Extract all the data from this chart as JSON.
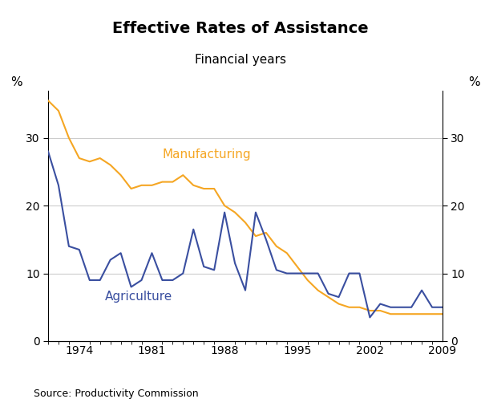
{
  "title": "Effective Rates of Assistance",
  "subtitle": "Financial years",
  "source": "Source: Productivity Commission",
  "ylabel_left": "%",
  "ylabel_right": "%",
  "xlim": [
    1971,
    2009
  ],
  "ylim": [
    0,
    37
  ],
  "yticks": [
    0,
    10,
    20,
    30
  ],
  "xtick_labels": [
    "1974",
    "1981",
    "1988",
    "1995",
    "2002",
    "2009"
  ],
  "xtick_positions": [
    1974,
    1981,
    1988,
    1995,
    2002,
    2009
  ],
  "manufacturing_color": "#F5A623",
  "agriculture_color": "#3A4FA0",
  "manufacturing_label": "Manufacturing",
  "agriculture_label": "Agriculture",
  "manufacturing_x": [
    1971,
    1972,
    1973,
    1974,
    1975,
    1976,
    1977,
    1978,
    1979,
    1980,
    1981,
    1982,
    1983,
    1984,
    1985,
    1986,
    1987,
    1988,
    1989,
    1990,
    1991,
    1992,
    1993,
    1994,
    1995,
    1996,
    1997,
    1998,
    1999,
    2000,
    2001,
    2002,
    2003,
    2004,
    2005,
    2006,
    2007,
    2008,
    2009
  ],
  "manufacturing_y": [
    35.5,
    34.0,
    30.0,
    27.0,
    26.5,
    27.0,
    26.0,
    24.5,
    22.5,
    23.0,
    23.0,
    23.5,
    23.5,
    24.5,
    23.0,
    22.5,
    22.5,
    20.0,
    19.0,
    17.5,
    15.5,
    16.0,
    14.0,
    13.0,
    11.0,
    9.0,
    7.5,
    6.5,
    5.5,
    5.0,
    5.0,
    4.5,
    4.5,
    4.0,
    4.0,
    4.0,
    4.0,
    4.0,
    4.0
  ],
  "agriculture_x": [
    1971,
    1972,
    1973,
    1974,
    1975,
    1976,
    1977,
    1978,
    1979,
    1980,
    1981,
    1982,
    1983,
    1984,
    1985,
    1986,
    1987,
    1988,
    1989,
    1990,
    1991,
    1992,
    1993,
    1994,
    1995,
    1996,
    1997,
    1998,
    1999,
    2000,
    2001,
    2002,
    2003,
    2004,
    2005,
    2006,
    2007,
    2008,
    2009
  ],
  "agriculture_y": [
    28.0,
    23.0,
    14.0,
    13.5,
    9.0,
    9.0,
    12.0,
    13.0,
    8.0,
    9.0,
    13.0,
    9.0,
    9.0,
    10.0,
    16.5,
    11.0,
    10.5,
    19.0,
    11.5,
    7.5,
    19.0,
    15.0,
    10.5,
    10.0,
    10.0,
    10.0,
    10.0,
    7.0,
    6.5,
    10.0,
    10.0,
    3.5,
    5.5,
    5.0,
    5.0,
    5.0,
    7.5,
    5.0,
    5.0
  ],
  "grid_color": "#cccccc",
  "title_fontsize": 14,
  "subtitle_fontsize": 11,
  "label_fontsize": 11,
  "tick_fontsize": 10,
  "source_fontsize": 9,
  "line_width": 1.5
}
